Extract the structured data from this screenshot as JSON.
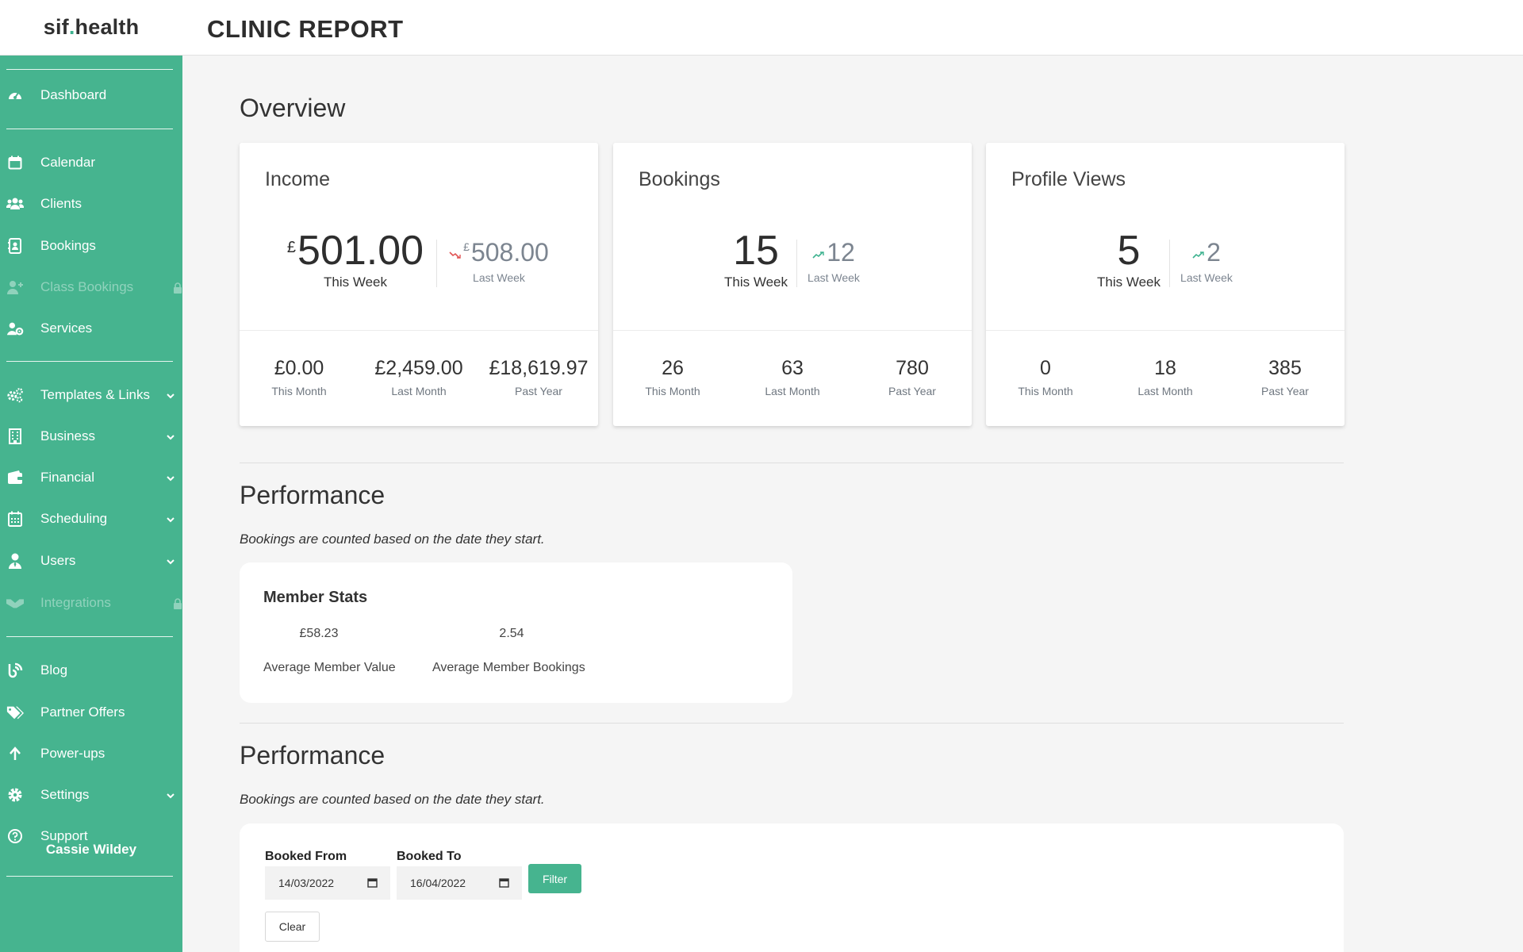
{
  "header": {
    "logo_prefix": "sif",
    "logo_dot": ".",
    "logo_suffix": "health",
    "title": "CLINIC REPORT"
  },
  "sidebar": {
    "items": [
      {
        "label": "Dashboard",
        "icon": "dashboard-gauge-icon"
      },
      {
        "label": "Calendar",
        "icon": "calendar-icon"
      },
      {
        "label": "Clients",
        "icon": "users-icon"
      },
      {
        "label": "Bookings",
        "icon": "address-book-icon"
      },
      {
        "label": "Class Bookings",
        "icon": "user-plus-icon",
        "disabled": true
      },
      {
        "label": "Services",
        "icon": "user-gear-icon"
      },
      {
        "label": "Templates & Links",
        "icon": "gears-icon",
        "expandable": true
      },
      {
        "label": "Business",
        "icon": "building-icon",
        "expandable": true
      },
      {
        "label": "Financial",
        "icon": "wallet-icon",
        "expandable": true
      },
      {
        "label": "Scheduling",
        "icon": "calendar-grid-icon",
        "expandable": true
      },
      {
        "label": "Users",
        "icon": "user-tie-icon",
        "expandable": true
      },
      {
        "label": "Integrations",
        "icon": "handshake-icon",
        "disabled": true
      },
      {
        "label": "Blog",
        "icon": "blog-icon"
      },
      {
        "label": "Partner Offers",
        "icon": "tags-icon"
      },
      {
        "label": "Power-ups",
        "icon": "arrow-up-icon"
      },
      {
        "label": "Settings",
        "icon": "gear-icon",
        "expandable": true
      },
      {
        "label": "Support",
        "icon": "question-circle-icon"
      }
    ],
    "user_name": "Cassie Wildey"
  },
  "overview": {
    "title": "Overview",
    "cards": [
      {
        "title": "Income",
        "currency": "£",
        "this_week": "501.00",
        "this_week_label": "This Week",
        "last_week": "508.00",
        "last_week_label": "Last Week",
        "trend": "down",
        "stats": [
          {
            "value": "£0.00",
            "label": "This Month"
          },
          {
            "value": "£2,459.00",
            "label": "Last Month"
          },
          {
            "value": "£18,619.97",
            "label": "Past Year"
          }
        ]
      },
      {
        "title": "Bookings",
        "this_week": "15",
        "this_week_label": "This Week",
        "last_week": "12",
        "last_week_label": "Last Week",
        "trend": "up",
        "stats": [
          {
            "value": "26",
            "label": "This Month"
          },
          {
            "value": "63",
            "label": "Last Month"
          },
          {
            "value": "780",
            "label": "Past Year"
          }
        ]
      },
      {
        "title": "Profile Views",
        "this_week": "5",
        "this_week_label": "This Week",
        "last_week": "2",
        "last_week_label": "Last Week",
        "trend": "up",
        "stats": [
          {
            "value": "0",
            "label": "This Month"
          },
          {
            "value": "18",
            "label": "Last Month"
          },
          {
            "value": "385",
            "label": "Past Year"
          }
        ]
      }
    ]
  },
  "performance1": {
    "title": "Performance",
    "note": "Bookings are counted based on the date they start.",
    "member_stats": {
      "title": "Member Stats",
      "avg_value": "£58.23",
      "avg_value_label": "Average Member Value",
      "avg_bookings": "2.54",
      "avg_bookings_label": "Average Member Bookings"
    }
  },
  "performance2": {
    "title": "Performance",
    "note": "Bookings are counted based on the date they start.",
    "booked_from_label": "Booked From",
    "booked_from_value": "14/03/2022",
    "booked_to_label": "Booked To",
    "booked_to_value": "16/04/2022",
    "filter_label": "Filter",
    "clear_label": "Clear"
  },
  "colors": {
    "brand": "#46b48f",
    "trend_up": "#3db28f",
    "trend_down": "#e05252"
  }
}
